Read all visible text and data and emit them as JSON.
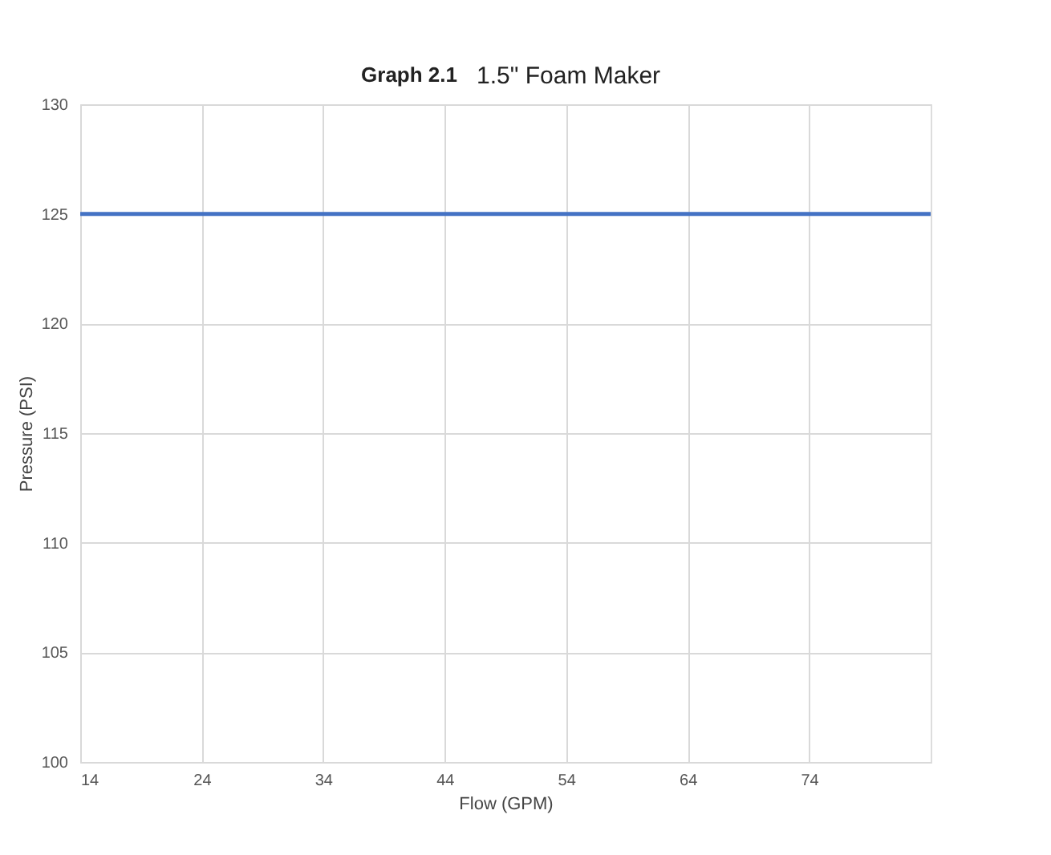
{
  "chart_data": {
    "type": "line",
    "title": "Graph 2.1",
    "subtitle": "1.5\" Foam Maker",
    "xlabel": "Flow (GPM)",
    "ylabel": "Pressure (PSI)",
    "x": [
      14,
      84
    ],
    "series": [
      {
        "color": "#4472c4",
        "values": [
          125,
          125
        ]
      }
    ],
    "xlim": [
      14,
      84
    ],
    "xticks": [
      14,
      24,
      34,
      44,
      54,
      64,
      74
    ],
    "ylim": [
      100,
      130
    ],
    "yticks": [
      100,
      105,
      110,
      115,
      120,
      125,
      130
    ],
    "grid": true,
    "legend": false,
    "marker": "none",
    "line_style": "solid"
  }
}
